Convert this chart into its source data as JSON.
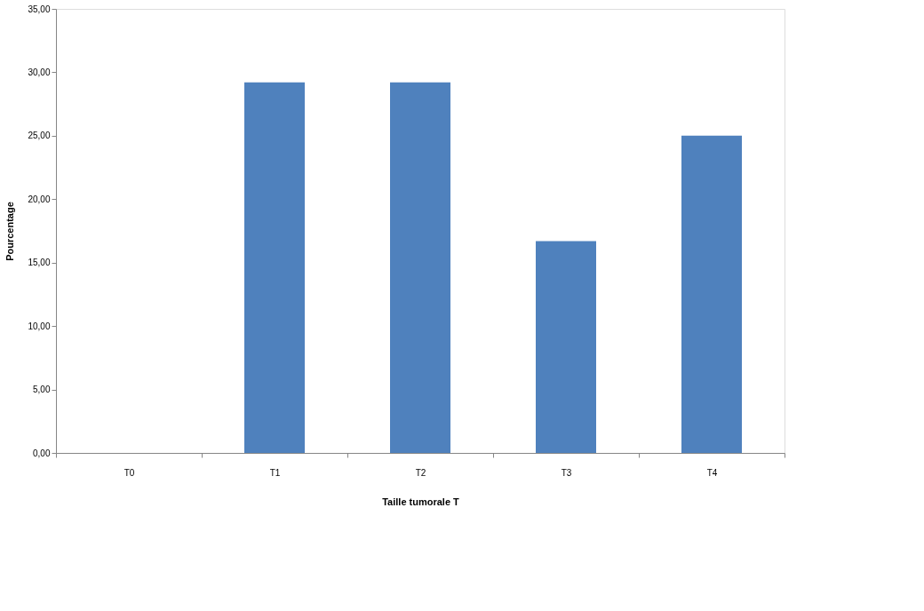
{
  "chart_data": {
    "type": "bar",
    "xlabel": "Taille tumorale T",
    "ylabel": "Pourcentage",
    "categories": [
      "T0",
      "T1",
      "T2",
      "T3",
      "T4"
    ],
    "values": [
      0,
      29.2,
      29.2,
      16.7,
      25.0
    ],
    "color": "#4f81bd",
    "ylim": [
      0,
      35
    ],
    "yticks": [
      {
        "value": 0,
        "label": "0,00"
      },
      {
        "value": 5,
        "label": "5,00"
      },
      {
        "value": 10,
        "label": "10,00"
      },
      {
        "value": 15,
        "label": "15,00"
      },
      {
        "value": 20,
        "label": "20,00"
      },
      {
        "value": 25,
        "label": "25,00"
      },
      {
        "value": 30,
        "label": "30,00"
      },
      {
        "value": 35,
        "label": "35,00"
      }
    ],
    "grid": false
  }
}
